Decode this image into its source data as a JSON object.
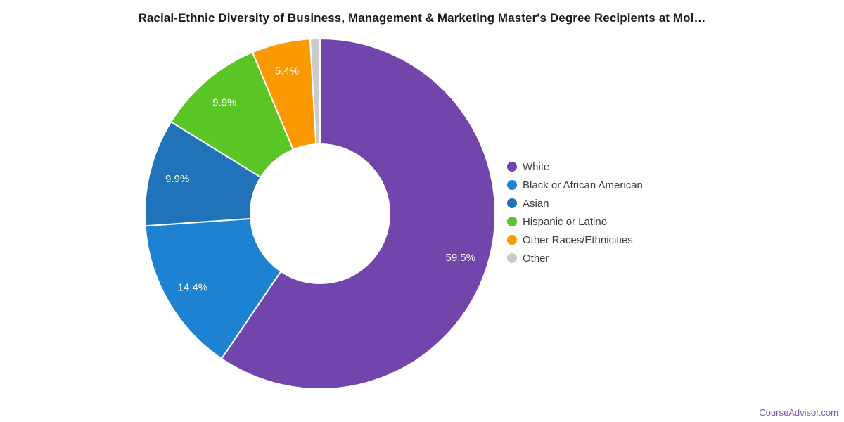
{
  "title": "Racial-Ethnic Diversity of Business, Management & Marketing Master's Degree Recipients at Mol…",
  "watermark": "CourseAdvisor.com",
  "chart_data": {
    "type": "pie",
    "subtype": "donut",
    "start_angle_deg": 0,
    "direction": "clockwise",
    "legend_position": "right",
    "background_color": "#ffffff",
    "separator_color": "#ffffff",
    "slice_label_color": "#ffffff",
    "slices": [
      {
        "label": "White",
        "value": 59.5,
        "display": "59.5%",
        "color": "#7245AC"
      },
      {
        "label": "Black or African American",
        "value": 14.4,
        "display": "14.4%",
        "color": "#1E82D2"
      },
      {
        "label": "Asian",
        "value": 9.9,
        "display": "9.9%",
        "color": "#2073B8"
      },
      {
        "label": "Hispanic or Latino",
        "value": 9.9,
        "display": "9.9%",
        "color": "#5AC626"
      },
      {
        "label": "Other Races/Ethnicities",
        "value": 5.4,
        "display": "5.4%",
        "color": "#FB9902"
      },
      {
        "label": "Other",
        "value": 0.9,
        "display": "",
        "color": "#CBCBCB"
      }
    ]
  }
}
